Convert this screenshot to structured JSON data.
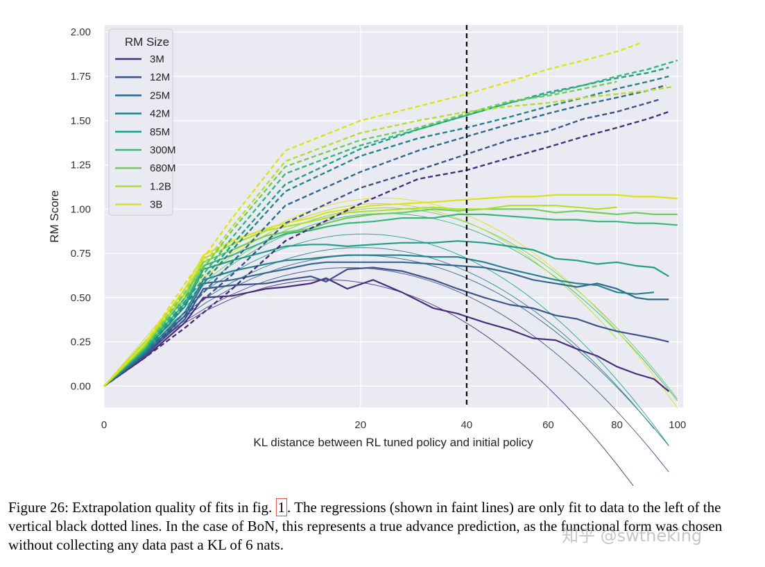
{
  "chart_data": {
    "type": "line",
    "xlabel": "KL distance between RL tuned policy and initial policy",
    "ylabel": "RM Score",
    "xscale": "sqrt",
    "xlim": [
      0,
      102
    ],
    "ylim": [
      -0.12,
      2.04
    ],
    "x_ticks": [
      0,
      20,
      40,
      60,
      80,
      100
    ],
    "y_ticks": [
      "0.00",
      "0.25",
      "0.50",
      "0.75",
      "1.00",
      "1.25",
      "1.50",
      "1.75",
      "2.00"
    ],
    "vline_x": 40,
    "legend_title": "RM Size",
    "legend_position": "top-left",
    "grid": true,
    "series": [
      {
        "name": "3M",
        "color": "#472d7b",
        "dashed_x": [
          0,
          0.5,
          2,
          5,
          10,
          20,
          30,
          40,
          50,
          60,
          70,
          80,
          90,
          97
        ],
        "dashed_y": [
          0,
          0.16,
          0.33,
          0.55,
          0.82,
          1.03,
          1.17,
          1.22,
          1.29,
          1.35,
          1.41,
          1.46,
          1.51,
          1.55
        ],
        "solid_x": [
          0,
          0.5,
          2,
          3,
          5,
          8,
          10,
          13,
          15,
          18,
          22,
          27,
          33,
          38,
          44,
          50,
          56,
          62,
          68,
          74,
          80,
          86,
          92,
          97
        ],
        "solid_y": [
          0,
          0.16,
          0.36,
          0.5,
          0.51,
          0.55,
          0.56,
          0.58,
          0.61,
          0.55,
          0.6,
          0.53,
          0.44,
          0.41,
          0.36,
          0.32,
          0.27,
          0.26,
          0.21,
          0.17,
          0.11,
          0.07,
          0.04,
          -0.03
        ]
      },
      {
        "name": "12M",
        "color": "#3b528b",
        "dashed_x": [
          0,
          0.5,
          2,
          5,
          10,
          20,
          30,
          40,
          50,
          60,
          70,
          80,
          90,
          94
        ],
        "dashed_y": [
          0,
          0.17,
          0.4,
          0.63,
          0.92,
          1.12,
          1.22,
          1.31,
          1.39,
          1.44,
          1.51,
          1.55,
          1.6,
          1.62
        ],
        "solid_x": [
          0,
          0.5,
          2,
          3,
          5,
          8,
          10,
          13,
          15,
          18,
          22,
          27,
          33,
          38,
          44,
          50,
          56,
          62,
          68,
          74,
          80,
          86,
          92,
          97
        ],
        "solid_y": [
          0,
          0.17,
          0.38,
          0.55,
          0.57,
          0.58,
          0.6,
          0.62,
          0.59,
          0.66,
          0.67,
          0.65,
          0.6,
          0.55,
          0.5,
          0.46,
          0.44,
          0.4,
          0.38,
          0.34,
          0.31,
          0.29,
          0.27,
          0.25
        ]
      },
      {
        "name": "25M",
        "color": "#31688e",
        "dashed_x": [
          0,
          0.5,
          2,
          5,
          10,
          20,
          30,
          40,
          50,
          60,
          70,
          80,
          90,
          96
        ],
        "dashed_y": [
          0,
          0.18,
          0.42,
          0.7,
          1.02,
          1.21,
          1.33,
          1.41,
          1.48,
          1.54,
          1.59,
          1.63,
          1.67,
          1.7
        ],
        "solid_x": [
          0,
          0.5,
          2,
          3,
          5,
          8,
          10,
          13,
          15,
          18,
          22,
          27,
          33,
          38,
          44,
          50,
          56,
          62,
          68,
          74,
          80,
          86,
          90,
          97
        ],
        "solid_y": [
          0,
          0.18,
          0.4,
          0.58,
          0.6,
          0.64,
          0.66,
          0.69,
          0.7,
          0.7,
          0.7,
          0.7,
          0.69,
          0.68,
          0.67,
          0.64,
          0.6,
          0.58,
          0.56,
          0.58,
          0.55,
          0.5,
          0.49,
          0.49
        ]
      },
      {
        "name": "42M",
        "color": "#26828e",
        "dashed_x": [
          0,
          0.5,
          2,
          5,
          10,
          20,
          30,
          40,
          50,
          60,
          70,
          80,
          90,
          97
        ],
        "dashed_y": [
          0,
          0.19,
          0.46,
          0.77,
          1.1,
          1.3,
          1.4,
          1.46,
          1.52,
          1.58,
          1.63,
          1.68,
          1.72,
          1.75
        ],
        "solid_x": [
          0,
          0.5,
          2,
          3,
          5,
          8,
          10,
          13,
          15,
          18,
          22,
          27,
          33,
          38,
          44,
          50,
          56,
          62,
          68,
          74,
          80,
          86,
          92
        ],
        "solid_y": [
          0,
          0.19,
          0.42,
          0.6,
          0.65,
          0.69,
          0.71,
          0.72,
          0.73,
          0.74,
          0.74,
          0.74,
          0.73,
          0.73,
          0.7,
          0.66,
          0.63,
          0.6,
          0.58,
          0.57,
          0.53,
          0.52,
          0.53
        ]
      },
      {
        "name": "85M",
        "color": "#1f9e89",
        "dashed_x": [
          0,
          0.5,
          2,
          5,
          10,
          20,
          30,
          40,
          50,
          60,
          70,
          80,
          90,
          97
        ],
        "dashed_y": [
          0,
          0.2,
          0.48,
          0.8,
          1.14,
          1.34,
          1.45,
          1.53,
          1.6,
          1.66,
          1.7,
          1.74,
          1.77,
          1.8
        ],
        "solid_x": [
          0,
          0.5,
          2,
          3,
          5,
          8,
          10,
          13,
          15,
          18,
          22,
          27,
          33,
          38,
          44,
          50,
          56,
          62,
          68,
          74,
          80,
          86,
          92,
          97
        ],
        "solid_y": [
          0,
          0.2,
          0.45,
          0.66,
          0.71,
          0.76,
          0.79,
          0.8,
          0.8,
          0.79,
          0.8,
          0.81,
          0.81,
          0.82,
          0.81,
          0.79,
          0.77,
          0.72,
          0.71,
          0.69,
          0.7,
          0.68,
          0.67,
          0.62
        ]
      },
      {
        "name": "300M",
        "color": "#35b779",
        "dashed_x": [
          0,
          0.5,
          2,
          5,
          10,
          20,
          30,
          40,
          50,
          60,
          70,
          80,
          90,
          100
        ],
        "dashed_y": [
          0,
          0.21,
          0.5,
          0.84,
          1.2,
          1.36,
          1.45,
          1.53,
          1.6,
          1.65,
          1.7,
          1.75,
          1.79,
          1.84
        ],
        "solid_x": [
          0,
          0.5,
          2,
          3,
          5,
          8,
          10,
          13,
          15,
          18,
          22,
          27,
          33,
          38,
          44,
          50,
          56,
          62,
          68,
          74,
          80,
          86,
          92,
          100
        ],
        "solid_y": [
          0,
          0.21,
          0.47,
          0.68,
          0.74,
          0.82,
          0.86,
          0.88,
          0.9,
          0.92,
          0.93,
          0.95,
          0.95,
          0.97,
          0.97,
          0.96,
          0.95,
          0.94,
          0.94,
          0.93,
          0.93,
          0.92,
          0.92,
          0.91
        ]
      },
      {
        "name": "680M",
        "color": "#6ece58",
        "dashed_x": [
          0,
          0.5,
          2,
          5,
          10,
          20,
          30,
          40,
          50,
          60,
          70,
          80
        ],
        "dashed_y": [
          0,
          0.22,
          0.53,
          0.88,
          1.24,
          1.39,
          1.46,
          1.54,
          1.61,
          1.64,
          1.68,
          1.72
        ],
        "solid_x": [
          0,
          0.5,
          2,
          3,
          5,
          8,
          10,
          13,
          15,
          18,
          22,
          27,
          33,
          38,
          44,
          50,
          56,
          62,
          68,
          74,
          80,
          86,
          92,
          100
        ],
        "solid_y": [
          0,
          0.22,
          0.5,
          0.7,
          0.77,
          0.85,
          0.87,
          0.89,
          0.92,
          0.95,
          0.97,
          0.98,
          1.0,
          0.99,
          1.0,
          1.0,
          1.0,
          0.98,
          0.99,
          0.98,
          0.97,
          0.98,
          0.97,
          0.97
        ]
      },
      {
        "name": "1.2B",
        "color": "#b5de2b",
        "dashed_x": [
          0,
          0.5,
          2,
          5,
          10,
          20,
          30,
          40,
          50,
          60,
          70,
          80,
          90,
          98
        ],
        "dashed_y": [
          0,
          0.23,
          0.55,
          0.9,
          1.27,
          1.43,
          1.5,
          1.55,
          1.58,
          1.6,
          1.63,
          1.65,
          1.67,
          1.69
        ],
        "solid_x": [
          0,
          0.5,
          2,
          3,
          5,
          8,
          10,
          13,
          15,
          18,
          22,
          27,
          33,
          38,
          44,
          50,
          56,
          62,
          68,
          74,
          80
        ],
        "solid_y": [
          0,
          0.23,
          0.52,
          0.72,
          0.8,
          0.88,
          0.9,
          0.93,
          0.95,
          0.98,
          0.99,
          1.0,
          1.01,
          1.0,
          1.0,
          1.02,
          1.02,
          1.02,
          1.01,
          1.0,
          1.01
        ]
      },
      {
        "name": "3B",
        "color": "#dde318",
        "dashed_x": [
          0,
          0.5,
          2,
          5,
          10,
          20,
          30,
          40,
          50,
          60,
          70,
          80,
          88
        ],
        "dashed_y": [
          0,
          0.24,
          0.58,
          0.95,
          1.33,
          1.5,
          1.58,
          1.65,
          1.72,
          1.79,
          1.84,
          1.89,
          1.94
        ],
        "solid_x": [
          0,
          0.5,
          2,
          3,
          5,
          8,
          10,
          13,
          15,
          18,
          22,
          27,
          33,
          38,
          44,
          50,
          56,
          62,
          68,
          74,
          80,
          86,
          92,
          100
        ],
        "solid_y": [
          0,
          0.24,
          0.55,
          0.74,
          0.82,
          0.89,
          0.92,
          0.95,
          0.98,
          1.0,
          1.02,
          1.03,
          1.04,
          1.05,
          1.06,
          1.07,
          1.07,
          1.08,
          1.08,
          1.08,
          1.08,
          1.07,
          1.07,
          1.06
        ]
      }
    ]
  },
  "caption": {
    "part1": "Figure 26: Extrapolation quality of fits in fig.",
    "ref": "1",
    "part2": ". The regressions (shown in faint lines) are only fit to data to the left of the vertical black dotted lines. In the case of BoN, this represents a true advance prediction, as the functional form was chosen without collecting any data past a KL of 6 nats."
  },
  "watermark": "知乎 @swtheking"
}
